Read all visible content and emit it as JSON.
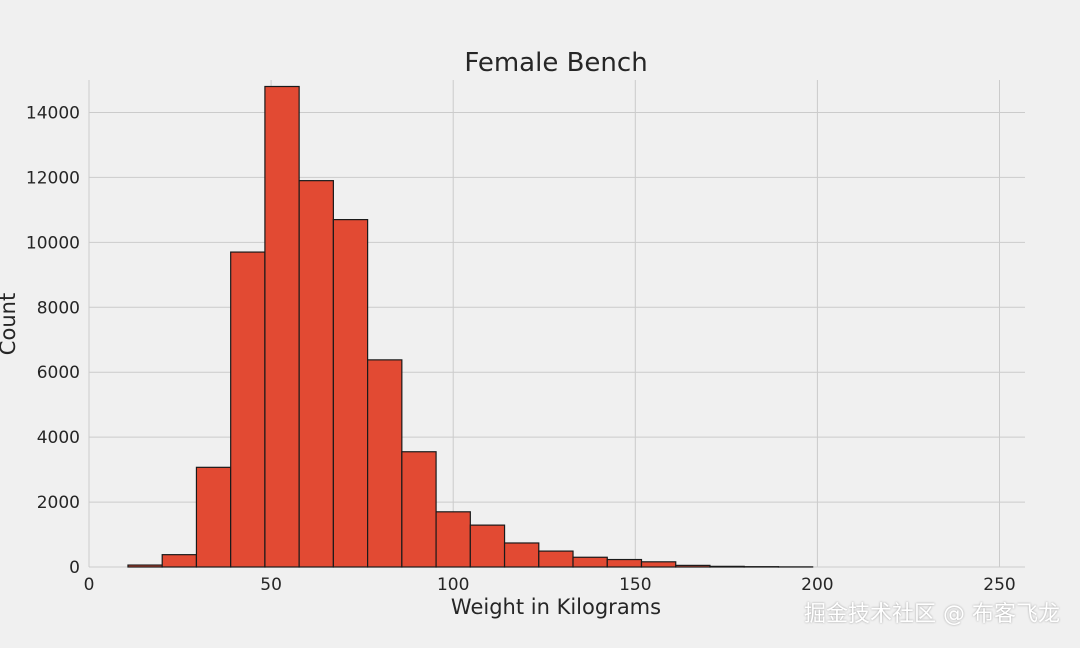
{
  "chart_data": {
    "type": "bar",
    "title": "Female Bench",
    "xlabel": "Weight in Kilograms",
    "ylabel": "Count",
    "xlim": [
      0,
      257
    ],
    "ylim": [
      0,
      15000
    ],
    "xticks": [
      0,
      50,
      100,
      150,
      200,
      250
    ],
    "yticks": [
      0,
      2000,
      4000,
      6000,
      8000,
      10000,
      12000,
      14000
    ],
    "grid": true,
    "bar_color": "#e24a33",
    "bins": [
      {
        "x0": 10.7,
        "x1": 20.1,
        "value": 60
      },
      {
        "x0": 20.1,
        "x1": 29.5,
        "value": 380
      },
      {
        "x0": 29.5,
        "x1": 38.9,
        "value": 3070
      },
      {
        "x0": 38.9,
        "x1": 48.3,
        "value": 9700
      },
      {
        "x0": 48.3,
        "x1": 57.7,
        "value": 14800
      },
      {
        "x0": 57.7,
        "x1": 67.1,
        "value": 11900
      },
      {
        "x0": 67.1,
        "x1": 76.5,
        "value": 10700
      },
      {
        "x0": 76.5,
        "x1": 85.9,
        "value": 6380
      },
      {
        "x0": 85.9,
        "x1": 95.3,
        "value": 3550
      },
      {
        "x0": 95.3,
        "x1": 104.7,
        "value": 1700
      },
      {
        "x0": 104.7,
        "x1": 114.1,
        "value": 1290
      },
      {
        "x0": 114.1,
        "x1": 123.5,
        "value": 740
      },
      {
        "x0": 123.5,
        "x1": 132.9,
        "value": 490
      },
      {
        "x0": 132.9,
        "x1": 142.3,
        "value": 300
      },
      {
        "x0": 142.3,
        "x1": 151.7,
        "value": 230
      },
      {
        "x0": 151.7,
        "x1": 161.1,
        "value": 160
      },
      {
        "x0": 161.1,
        "x1": 170.5,
        "value": 50
      },
      {
        "x0": 170.5,
        "x1": 179.9,
        "value": 20
      },
      {
        "x0": 179.9,
        "x1": 189.3,
        "value": 10
      },
      {
        "x0": 189.3,
        "x1": 198.7,
        "value": 4
      }
    ]
  },
  "watermark": "掘金技术社区 @ 布客飞龙"
}
